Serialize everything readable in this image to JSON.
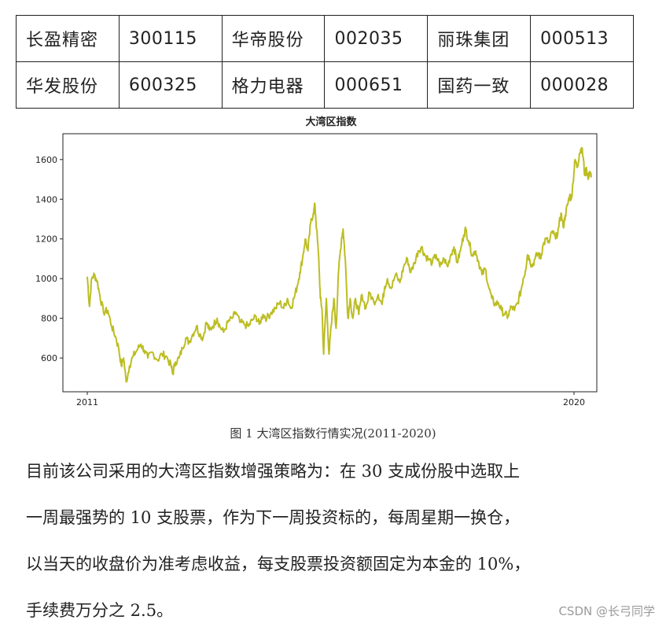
{
  "table": {
    "rows": [
      [
        {
          "name": "长盈精密",
          "code": "300115"
        },
        {
          "name": "华帝股份",
          "code": "002035"
        },
        {
          "name": "丽珠集团",
          "code": "000513"
        }
      ],
      [
        {
          "name": "华发股份",
          "code": "600325"
        },
        {
          "name": "格力电器",
          "code": "000651"
        },
        {
          "name": "国药一致",
          "code": "000028"
        }
      ]
    ]
  },
  "chart_data": {
    "type": "line",
    "title": "大湾区指数",
    "xlabel": "",
    "ylabel": "",
    "x_tick_labels": [
      "2011",
      "2020"
    ],
    "y_ticks": [
      600,
      800,
      1000,
      1200,
      1400,
      1600
    ],
    "xlim": [
      2011.0,
      2020.35
    ],
    "ylim": [
      430,
      1730
    ],
    "grid": false,
    "series": [
      {
        "color": "#bcbd22",
        "points": [
          [
            2011.0,
            1010
          ],
          [
            2011.04,
            860
          ],
          [
            2011.08,
            1000
          ],
          [
            2011.13,
            1020
          ],
          [
            2011.18,
            990
          ],
          [
            2011.23,
            920
          ],
          [
            2011.3,
            830
          ],
          [
            2011.38,
            840
          ],
          [
            2011.45,
            760
          ],
          [
            2011.52,
            710
          ],
          [
            2011.58,
            650
          ],
          [
            2011.63,
            560
          ],
          [
            2011.67,
            600
          ],
          [
            2011.72,
            480
          ],
          [
            2011.78,
            560
          ],
          [
            2011.85,
            610
          ],
          [
            2011.92,
            640
          ],
          [
            2011.99,
            670
          ],
          [
            2012.05,
            640
          ],
          [
            2012.12,
            600
          ],
          [
            2012.2,
            630
          ],
          [
            2012.3,
            590
          ],
          [
            2012.38,
            620
          ],
          [
            2012.46,
            610
          ],
          [
            2012.55,
            560
          ],
          [
            2012.58,
            520
          ],
          [
            2012.63,
            580
          ],
          [
            2012.7,
            600
          ],
          [
            2012.76,
            650
          ],
          [
            2012.82,
            700
          ],
          [
            2012.88,
            680
          ],
          [
            2012.95,
            720
          ],
          [
            2013.02,
            760
          ],
          [
            2013.08,
            720
          ],
          [
            2013.14,
            700
          ],
          [
            2013.2,
            780
          ],
          [
            2013.26,
            740
          ],
          [
            2013.32,
            760
          ],
          [
            2013.4,
            800
          ],
          [
            2013.45,
            760
          ],
          [
            2013.52,
            730
          ],
          [
            2013.6,
            780
          ],
          [
            2013.68,
            800
          ],
          [
            2013.75,
            830
          ],
          [
            2013.82,
            780
          ],
          [
            2013.9,
            770
          ],
          [
            2013.98,
            760
          ],
          [
            2014.05,
            790
          ],
          [
            2014.12,
            810
          ],
          [
            2014.18,
            770
          ],
          [
            2014.25,
            820
          ],
          [
            2014.32,
            800
          ],
          [
            2014.4,
            830
          ],
          [
            2014.48,
            850
          ],
          [
            2014.56,
            880
          ],
          [
            2014.63,
            850
          ],
          [
            2014.7,
            900
          ],
          [
            2014.76,
            850
          ],
          [
            2014.82,
            900
          ],
          [
            2014.88,
            960
          ],
          [
            2014.93,
            1030
          ],
          [
            2014.98,
            1100
          ],
          [
            2015.03,
            1200
          ],
          [
            2015.08,
            1140
          ],
          [
            2015.13,
            1280
          ],
          [
            2015.18,
            1330
          ],
          [
            2015.21,
            1370
          ],
          [
            2015.24,
            1250
          ],
          [
            2015.28,
            1100
          ],
          [
            2015.31,
            900
          ],
          [
            2015.34,
            850
          ],
          [
            2015.37,
            620
          ],
          [
            2015.42,
            900
          ],
          [
            2015.47,
            620
          ],
          [
            2015.51,
            760
          ],
          [
            2015.56,
            900
          ],
          [
            2015.6,
            750
          ],
          [
            2015.65,
            1050
          ],
          [
            2015.7,
            1200
          ],
          [
            2015.73,
            1250
          ],
          [
            2015.77,
            1100
          ],
          [
            2015.82,
            800
          ],
          [
            2015.86,
            900
          ],
          [
            2015.91,
            800
          ],
          [
            2015.96,
            900
          ],
          [
            2016.02,
            820
          ],
          [
            2016.08,
            920
          ],
          [
            2016.15,
            850
          ],
          [
            2016.22,
            930
          ],
          [
            2016.3,
            880
          ],
          [
            2016.38,
            920
          ],
          [
            2016.45,
            870
          ],
          [
            2016.5,
            960
          ],
          [
            2016.55,
            1000
          ],
          [
            2016.62,
            950
          ],
          [
            2016.7,
            1020
          ],
          [
            2016.78,
            980
          ],
          [
            2016.85,
            1060
          ],
          [
            2016.92,
            1100
          ],
          [
            2016.98,
            1030
          ],
          [
            2017.05,
            1080
          ],
          [
            2017.12,
            1140
          ],
          [
            2017.18,
            1160
          ],
          [
            2017.24,
            1120
          ],
          [
            2017.3,
            1100
          ],
          [
            2017.38,
            1080
          ],
          [
            2017.45,
            1120
          ],
          [
            2017.52,
            1060
          ],
          [
            2017.6,
            1100
          ],
          [
            2017.66,
            1060
          ],
          [
            2017.72,
            1120
          ],
          [
            2017.78,
            1160
          ],
          [
            2017.84,
            1080
          ],
          [
            2017.9,
            1140
          ],
          [
            2017.96,
            1220
          ],
          [
            2018.0,
            1250
          ],
          [
            2018.05,
            1190
          ],
          [
            2018.12,
            1120
          ],
          [
            2018.18,
            1140
          ],
          [
            2018.24,
            1080
          ],
          [
            2018.3,
            1020
          ],
          [
            2018.36,
            1050
          ],
          [
            2018.42,
            960
          ],
          [
            2018.48,
            900
          ],
          [
            2018.54,
            870
          ],
          [
            2018.6,
            880
          ],
          [
            2018.66,
            840
          ],
          [
            2018.72,
            820
          ],
          [
            2018.78,
            810
          ],
          [
            2018.84,
            860
          ],
          [
            2018.9,
            840
          ],
          [
            2018.96,
            880
          ],
          [
            2019.02,
            940
          ],
          [
            2019.06,
            1000
          ],
          [
            2019.1,
            1040
          ],
          [
            2019.14,
            1120
          ],
          [
            2019.18,
            1100
          ],
          [
            2019.22,
            1060
          ],
          [
            2019.28,
            1100
          ],
          [
            2019.34,
            1130
          ],
          [
            2019.38,
            1100
          ],
          [
            2019.42,
            1160
          ],
          [
            2019.48,
            1200
          ],
          [
            2019.54,
            1180
          ],
          [
            2019.6,
            1240
          ],
          [
            2019.66,
            1200
          ],
          [
            2019.72,
            1260
          ],
          [
            2019.76,
            1330
          ],
          [
            2019.8,
            1260
          ],
          [
            2019.84,
            1320
          ],
          [
            2019.88,
            1370
          ],
          [
            2019.92,
            1420
          ],
          [
            2019.95,
            1400
          ],
          [
            2019.98,
            1480
          ],
          [
            2020.02,
            1600
          ],
          [
            2020.06,
            1560
          ],
          [
            2020.1,
            1630
          ],
          [
            2020.14,
            1660
          ],
          [
            2020.17,
            1610
          ],
          [
            2020.2,
            1520
          ],
          [
            2020.23,
            1560
          ],
          [
            2020.26,
            1500
          ],
          [
            2020.29,
            1540
          ],
          [
            2020.32,
            1510
          ]
        ]
      }
    ]
  },
  "caption": "图 1   大湾区指数行情实况(2011-2020)",
  "paragraph_lines": [
    "目前该公司采用的大湾区指数增强策略为：在 30 支成份股中选取上",
    "一周最强势的 10 支股票，作为下一周投资标的，每周星期一换仓，",
    "以当天的收盘价为准考虑收益，每支股票投资额固定为本金的 10%，",
    "手续费万分之 2.5。"
  ],
  "watermark": "CSDN @长弓同学"
}
